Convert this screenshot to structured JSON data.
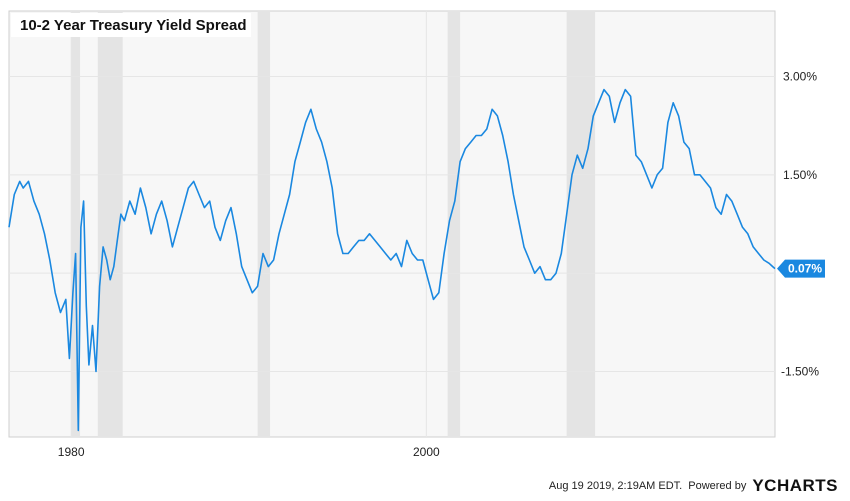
{
  "chart_data": {
    "type": "line",
    "title": "10-2 Year Treasury Yield Spread",
    "x_range": [
      1976.5,
      2019.63
    ],
    "ylim": [
      -2.5,
      4.0
    ],
    "x_ticks": [
      {
        "value": 1980,
        "label": "1980"
      },
      {
        "value": 2000,
        "label": "2000"
      }
    ],
    "y_ticks": [
      {
        "value": 3.0,
        "label": "3.00%"
      },
      {
        "value": 1.5,
        "label": "1.50%"
      },
      {
        "value": -1.5,
        "label": "-1.50%"
      }
    ],
    "zero_line": true,
    "grid": true,
    "shaded_periods": [
      [
        1980.0,
        1980.5
      ],
      [
        1981.5,
        1982.9
      ],
      [
        1990.5,
        1991.2
      ],
      [
        2001.2,
        2001.9
      ],
      [
        2007.9,
        2009.5
      ]
    ],
    "last_value": {
      "value": 0.07,
      "label": "0.07%"
    },
    "series": [
      {
        "color": "#1a88e0",
        "points": [
          [
            1976.5,
            0.7
          ],
          [
            1976.8,
            1.2
          ],
          [
            1977.1,
            1.4
          ],
          [
            1977.3,
            1.3
          ],
          [
            1977.6,
            1.4
          ],
          [
            1977.9,
            1.1
          ],
          [
            1978.2,
            0.9
          ],
          [
            1978.5,
            0.6
          ],
          [
            1978.8,
            0.2
          ],
          [
            1979.1,
            -0.3
          ],
          [
            1979.4,
            -0.6
          ],
          [
            1979.7,
            -0.4
          ],
          [
            1979.9,
            -1.3
          ],
          [
            1980.1,
            -0.3
          ],
          [
            1980.25,
            0.3
          ],
          [
            1980.4,
            -2.4
          ],
          [
            1980.55,
            0.7
          ],
          [
            1980.7,
            1.1
          ],
          [
            1980.85,
            -0.5
          ],
          [
            1981.0,
            -1.4
          ],
          [
            1981.2,
            -0.8
          ],
          [
            1981.4,
            -1.5
          ],
          [
            1981.6,
            -0.2
          ],
          [
            1981.8,
            0.4
          ],
          [
            1982.0,
            0.2
          ],
          [
            1982.2,
            -0.1
          ],
          [
            1982.4,
            0.1
          ],
          [
            1982.6,
            0.5
          ],
          [
            1982.8,
            0.9
          ],
          [
            1983.0,
            0.8
          ],
          [
            1983.3,
            1.1
          ],
          [
            1983.6,
            0.9
          ],
          [
            1983.9,
            1.3
          ],
          [
            1984.2,
            1.0
          ],
          [
            1984.5,
            0.6
          ],
          [
            1984.8,
            0.9
          ],
          [
            1985.1,
            1.1
          ],
          [
            1985.4,
            0.8
          ],
          [
            1985.7,
            0.4
          ],
          [
            1986.0,
            0.7
          ],
          [
            1986.3,
            1.0
          ],
          [
            1986.6,
            1.3
          ],
          [
            1986.9,
            1.4
          ],
          [
            1987.2,
            1.2
          ],
          [
            1987.5,
            1.0
          ],
          [
            1987.8,
            1.1
          ],
          [
            1988.1,
            0.7
          ],
          [
            1988.4,
            0.5
          ],
          [
            1988.7,
            0.8
          ],
          [
            1989.0,
            1.0
          ],
          [
            1989.3,
            0.6
          ],
          [
            1989.6,
            0.1
          ],
          [
            1989.9,
            -0.1
          ],
          [
            1990.2,
            -0.3
          ],
          [
            1990.5,
            -0.2
          ],
          [
            1990.8,
            0.3
          ],
          [
            1991.1,
            0.1
          ],
          [
            1991.4,
            0.2
          ],
          [
            1991.7,
            0.6
          ],
          [
            1992.0,
            0.9
          ],
          [
            1992.3,
            1.2
          ],
          [
            1992.6,
            1.7
          ],
          [
            1992.9,
            2.0
          ],
          [
            1993.2,
            2.3
          ],
          [
            1993.5,
            2.5
          ],
          [
            1993.8,
            2.2
          ],
          [
            1994.1,
            2.0
          ],
          [
            1994.4,
            1.7
          ],
          [
            1994.7,
            1.3
          ],
          [
            1995.0,
            0.6
          ],
          [
            1995.3,
            0.3
          ],
          [
            1995.6,
            0.3
          ],
          [
            1995.9,
            0.4
          ],
          [
            1996.2,
            0.5
          ],
          [
            1996.5,
            0.5
          ],
          [
            1996.8,
            0.6
          ],
          [
            1997.1,
            0.5
          ],
          [
            1997.4,
            0.4
          ],
          [
            1997.7,
            0.3
          ],
          [
            1998.0,
            0.2
          ],
          [
            1998.3,
            0.3
          ],
          [
            1998.6,
            0.1
          ],
          [
            1998.9,
            0.5
          ],
          [
            1999.2,
            0.3
          ],
          [
            1999.5,
            0.2
          ],
          [
            1999.8,
            0.2
          ],
          [
            2000.1,
            -0.1
          ],
          [
            2000.4,
            -0.4
          ],
          [
            2000.7,
            -0.3
          ],
          [
            2001.0,
            0.3
          ],
          [
            2001.3,
            0.8
          ],
          [
            2001.6,
            1.1
          ],
          [
            2001.9,
            1.7
          ],
          [
            2002.2,
            1.9
          ],
          [
            2002.5,
            2.0
          ],
          [
            2002.8,
            2.1
          ],
          [
            2003.1,
            2.1
          ],
          [
            2003.4,
            2.2
          ],
          [
            2003.7,
            2.5
          ],
          [
            2004.0,
            2.4
          ],
          [
            2004.3,
            2.1
          ],
          [
            2004.6,
            1.7
          ],
          [
            2004.9,
            1.2
          ],
          [
            2005.2,
            0.8
          ],
          [
            2005.5,
            0.4
          ],
          [
            2005.8,
            0.2
          ],
          [
            2006.1,
            0.0
          ],
          [
            2006.4,
            0.1
          ],
          [
            2006.7,
            -0.1
          ],
          [
            2007.0,
            -0.1
          ],
          [
            2007.3,
            0.0
          ],
          [
            2007.6,
            0.3
          ],
          [
            2007.9,
            0.9
          ],
          [
            2008.2,
            1.5
          ],
          [
            2008.5,
            1.8
          ],
          [
            2008.8,
            1.6
          ],
          [
            2009.1,
            1.9
          ],
          [
            2009.4,
            2.4
          ],
          [
            2009.7,
            2.6
          ],
          [
            2010.0,
            2.8
          ],
          [
            2010.3,
            2.7
          ],
          [
            2010.6,
            2.3
          ],
          [
            2010.9,
            2.6
          ],
          [
            2011.2,
            2.8
          ],
          [
            2011.5,
            2.7
          ],
          [
            2011.8,
            1.8
          ],
          [
            2012.1,
            1.7
          ],
          [
            2012.4,
            1.5
          ],
          [
            2012.7,
            1.3
          ],
          [
            2013.0,
            1.5
          ],
          [
            2013.3,
            1.6
          ],
          [
            2013.6,
            2.3
          ],
          [
            2013.9,
            2.6
          ],
          [
            2014.2,
            2.4
          ],
          [
            2014.5,
            2.0
          ],
          [
            2014.8,
            1.9
          ],
          [
            2015.1,
            1.5
          ],
          [
            2015.4,
            1.5
          ],
          [
            2015.7,
            1.4
          ],
          [
            2016.0,
            1.3
          ],
          [
            2016.3,
            1.0
          ],
          [
            2016.6,
            0.9
          ],
          [
            2016.9,
            1.2
          ],
          [
            2017.2,
            1.1
          ],
          [
            2017.5,
            0.9
          ],
          [
            2017.8,
            0.7
          ],
          [
            2018.1,
            0.6
          ],
          [
            2018.4,
            0.4
          ],
          [
            2018.7,
            0.3
          ],
          [
            2019.0,
            0.2
          ],
          [
            2019.3,
            0.15
          ],
          [
            2019.5,
            0.1
          ],
          [
            2019.63,
            0.07
          ]
        ]
      }
    ]
  },
  "footer": {
    "timestamp": "Aug 19 2019, 2:19AM EDT.",
    "powered_by": "Powered by",
    "brand": "YCHARTS"
  },
  "colors": {
    "line": "#1a88e0",
    "plot_bg": "#f7f7f7",
    "recession": "#e4e4e4",
    "grid": "#e6e6e6",
    "badge": "#1a88e0"
  }
}
